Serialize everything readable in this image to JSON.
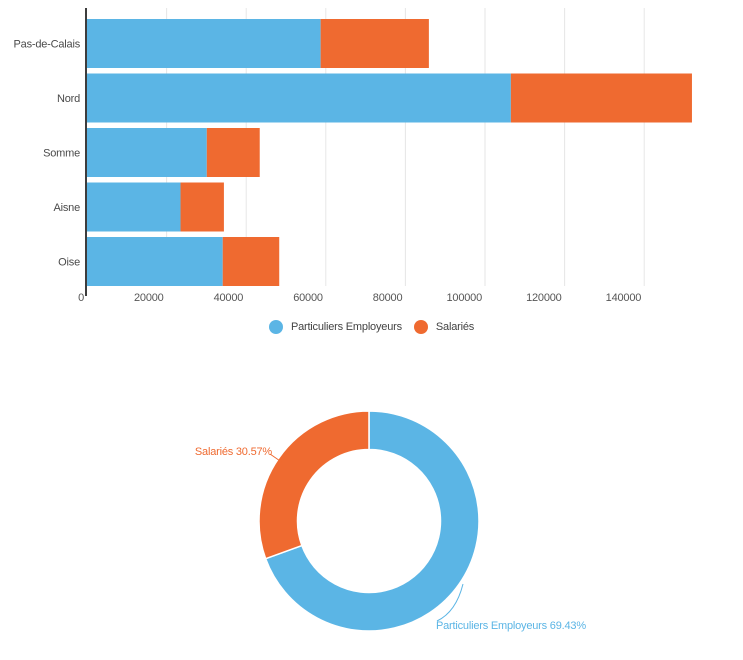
{
  "colors": {
    "blue": "#5BB5E5",
    "orange": "#EF6A30",
    "grid": "#e6e6e6",
    "axis_line": "#3d3d3d",
    "axis_text": "#565656",
    "category_text": "#4a4a4a",
    "legend_text": "#434343"
  },
  "legend": {
    "items": [
      {
        "label": "Particuliers Employeurs",
        "color": "#5BB5E5"
      },
      {
        "label": "Salariés",
        "color": "#EF6A30"
      }
    ]
  },
  "chart_data": [
    {
      "type": "bar",
      "orientation": "horizontal",
      "stacked": true,
      "title": "",
      "xlabel": "",
      "ylabel": "",
      "categories": [
        "Pas-de-Calais",
        "Nord",
        "Somme",
        "Aisne",
        "Oise"
      ],
      "series": [
        {
          "name": "Particuliers Employeurs",
          "color": "#5BB5E5",
          "values": [
            58700,
            106500,
            30100,
            23500,
            34100
          ]
        },
        {
          "name": "Salariés",
          "color": "#EF6A30",
          "values": [
            27200,
            45500,
            13300,
            10900,
            14200
          ]
        }
      ],
      "totals": [
        85900,
        152000,
        43400,
        34400,
        48300
      ],
      "x_ticks": [
        0,
        20000,
        40000,
        60000,
        80000,
        100000,
        120000,
        140000
      ],
      "xlim": [
        0,
        165000
      ],
      "grid": true,
      "legend_position": "bottom"
    },
    {
      "type": "pie",
      "donut": true,
      "start_angle_deg": -90,
      "direction": "clockwise",
      "slices": [
        {
          "name": "Particuliers Employeurs",
          "value": 69.43,
          "label": "Particuliers Employeurs 69.43%",
          "color": "#5BB5E5"
        },
        {
          "name": "Salariés",
          "value": 30.57,
          "label": "Salariés 30.57%",
          "color": "#EF6A30"
        }
      ]
    }
  ]
}
